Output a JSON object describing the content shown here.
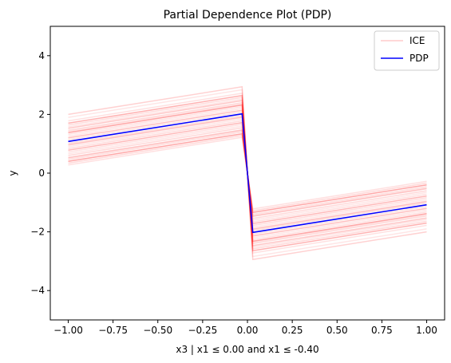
{
  "chart_data": {
    "type": "line",
    "title": "Partial Dependence Plot (PDP)",
    "xlabel": "x3 | x1 ≤ 0.00 and x1 ≤ -0.40",
    "ylabel": "y",
    "xlim": [
      -1.1,
      1.1
    ],
    "ylim": [
      -5,
      5
    ],
    "xticks": [
      -1.0,
      -0.75,
      -0.5,
      -0.25,
      0.0,
      0.25,
      0.5,
      0.75,
      1.0
    ],
    "xtick_labels": [
      "−1.00",
      "−0.75",
      "−0.50",
      "−0.25",
      "0.00",
      "0.25",
      "0.50",
      "0.75",
      "1.00"
    ],
    "yticks": [
      -4,
      -2,
      0,
      2,
      4
    ],
    "ytick_labels": [
      "−4",
      "−2",
      "0",
      "2",
      "4"
    ],
    "grid": false,
    "legend": {
      "placement": "top-right",
      "entries": [
        {
          "label": "ICE",
          "color": "#ffcccc"
        },
        {
          "label": "PDP",
          "color": "#0000ff"
        }
      ]
    },
    "x": [
      -1.0,
      -0.03,
      0.03,
      1.0
    ],
    "series": [
      {
        "name": "PDP",
        "color": "#0000ff",
        "values": [
          1.08,
          2.02,
          -2.02,
          -1.08
        ]
      }
    ],
    "ice_color": "#ff0000",
    "ice_offsets": [
      [
        0.92,
        0.18
      ],
      [
        0.7,
        0.12
      ],
      [
        0.62,
        0.3
      ],
      [
        0.5,
        0.1
      ],
      [
        0.45,
        0.22
      ],
      [
        0.38,
        0.14
      ],
      [
        0.3,
        0.35
      ],
      [
        0.24,
        0.12
      ],
      [
        0.18,
        0.1
      ],
      [
        0.12,
        0.25
      ],
      [
        0.06,
        0.12
      ],
      [
        0.0,
        0.1
      ],
      [
        -0.06,
        0.12
      ],
      [
        -0.12,
        0.2
      ],
      [
        -0.18,
        0.1
      ],
      [
        -0.24,
        0.14
      ],
      [
        -0.3,
        0.28
      ],
      [
        -0.36,
        0.12
      ],
      [
        -0.42,
        0.1
      ],
      [
        -0.48,
        0.15
      ],
      [
        -0.55,
        0.22
      ],
      [
        -0.62,
        0.12
      ],
      [
        -0.68,
        0.35
      ],
      [
        -0.74,
        0.15
      ],
      [
        -0.8,
        0.12
      ],
      [
        0.82,
        0.1
      ],
      [
        0.34,
        0.1
      ],
      [
        -0.1,
        0.1
      ],
      [
        -0.58,
        0.1
      ],
      [
        0.56,
        0.14
      ]
    ]
  }
}
